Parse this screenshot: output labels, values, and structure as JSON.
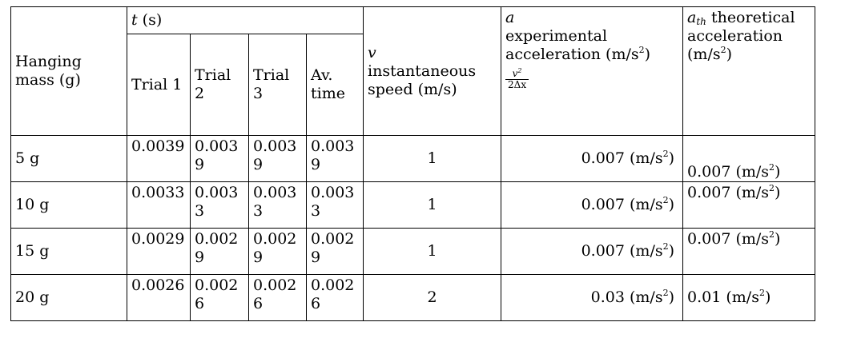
{
  "header": {
    "hanging_mass": "Hanging mass (g)",
    "t_symbol": "t",
    "t_unit": " (s)",
    "trials": [
      "Trial 1",
      "Trial 2",
      "Trial 3",
      "Av. time"
    ],
    "v_symbol": "v",
    "v_label": "instantaneous speed (m/s)",
    "a_symbol": "a",
    "a_label": "experimental acceleration (m/s",
    "a_unit_close": ")",
    "fraction_num": "v",
    "fraction_den": "2Δx",
    "ath_symbol": "a",
    "ath_sub": "th",
    "ath_label": " theoretical acceleration (m/s",
    "ath_unit_close": ")",
    "superscript_two": "2"
  },
  "rows": [
    {
      "mass": "5 g",
      "trial1": "0.0039",
      "trial2": "0.0039",
      "trial3": "0.0039",
      "avg": "0.0039",
      "v": "1",
      "a": "0.007 (m/s",
      "ath": "0.007 (m/s"
    },
    {
      "mass": "10 g",
      "trial1": "0.0033",
      "trial2": "0.0033",
      "trial3": "0.0033",
      "avg": "0.0033",
      "v": "1",
      "a": "0.007 (m/s",
      "ath": "0.007 (m/s"
    },
    {
      "mass": "15 g",
      "trial1": "0.0029",
      "trial2": "0.0029",
      "trial3": "0.0029",
      "avg": "0.0029",
      "v": "1",
      "a": "0.007 (m/s",
      "ath": "0.007 (m/s"
    },
    {
      "mass": "20 g",
      "trial1": "0.0026",
      "trial2": "0.0026",
      "trial3": "0.0026",
      "avg": "0.0026",
      "v": "2",
      "a": "0.03 (m/s",
      "ath": "0.01 (m/s"
    }
  ]
}
